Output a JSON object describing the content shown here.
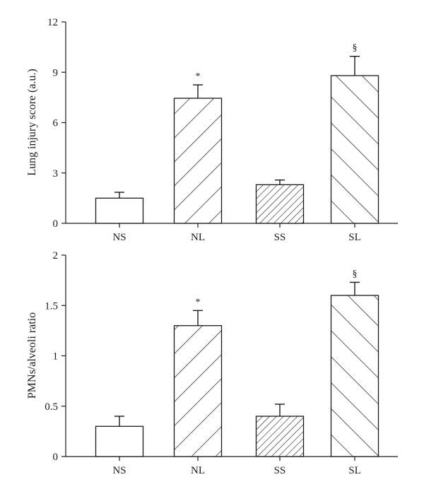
{
  "chart_data": [
    {
      "type": "bar",
      "title": "",
      "xlabel": "",
      "ylabel": "Lung injury score (a.u.)",
      "ylim": [
        0,
        12
      ],
      "yticks": [
        0,
        3,
        6,
        9,
        12
      ],
      "ytick_labels": [
        "0",
        "3",
        "6",
        "9",
        "12"
      ],
      "grid": false,
      "categories": [
        "NS",
        "NL",
        "SS",
        "SL"
      ],
      "values": [
        1.5,
        7.45,
        2.3,
        8.8
      ],
      "errors": [
        0.35,
        0.8,
        0.28,
        1.15
      ],
      "patterns": [
        "none",
        "wide-hatch",
        "dense-hatch",
        "wide-back-hatch"
      ],
      "annotations": [
        "",
        "*",
        "",
        "§"
      ]
    },
    {
      "type": "bar",
      "title": "",
      "xlabel": "",
      "ylabel": "PMNs/alveoli ratio",
      "ylim": [
        0,
        2
      ],
      "yticks": [
        0,
        0.5,
        1,
        1.5,
        2
      ],
      "ytick_labels": [
        "0",
        "0.5",
        "1",
        "1.5",
        "2"
      ],
      "grid": false,
      "categories": [
        "NS",
        "NL",
        "SS",
        "SL"
      ],
      "values": [
        0.3,
        1.3,
        0.4,
        1.6
      ],
      "errors": [
        0.1,
        0.15,
        0.12,
        0.13
      ],
      "patterns": [
        "none",
        "wide-hatch",
        "dense-hatch",
        "wide-back-hatch"
      ],
      "annotations": [
        "",
        "*",
        "",
        "§"
      ]
    }
  ]
}
